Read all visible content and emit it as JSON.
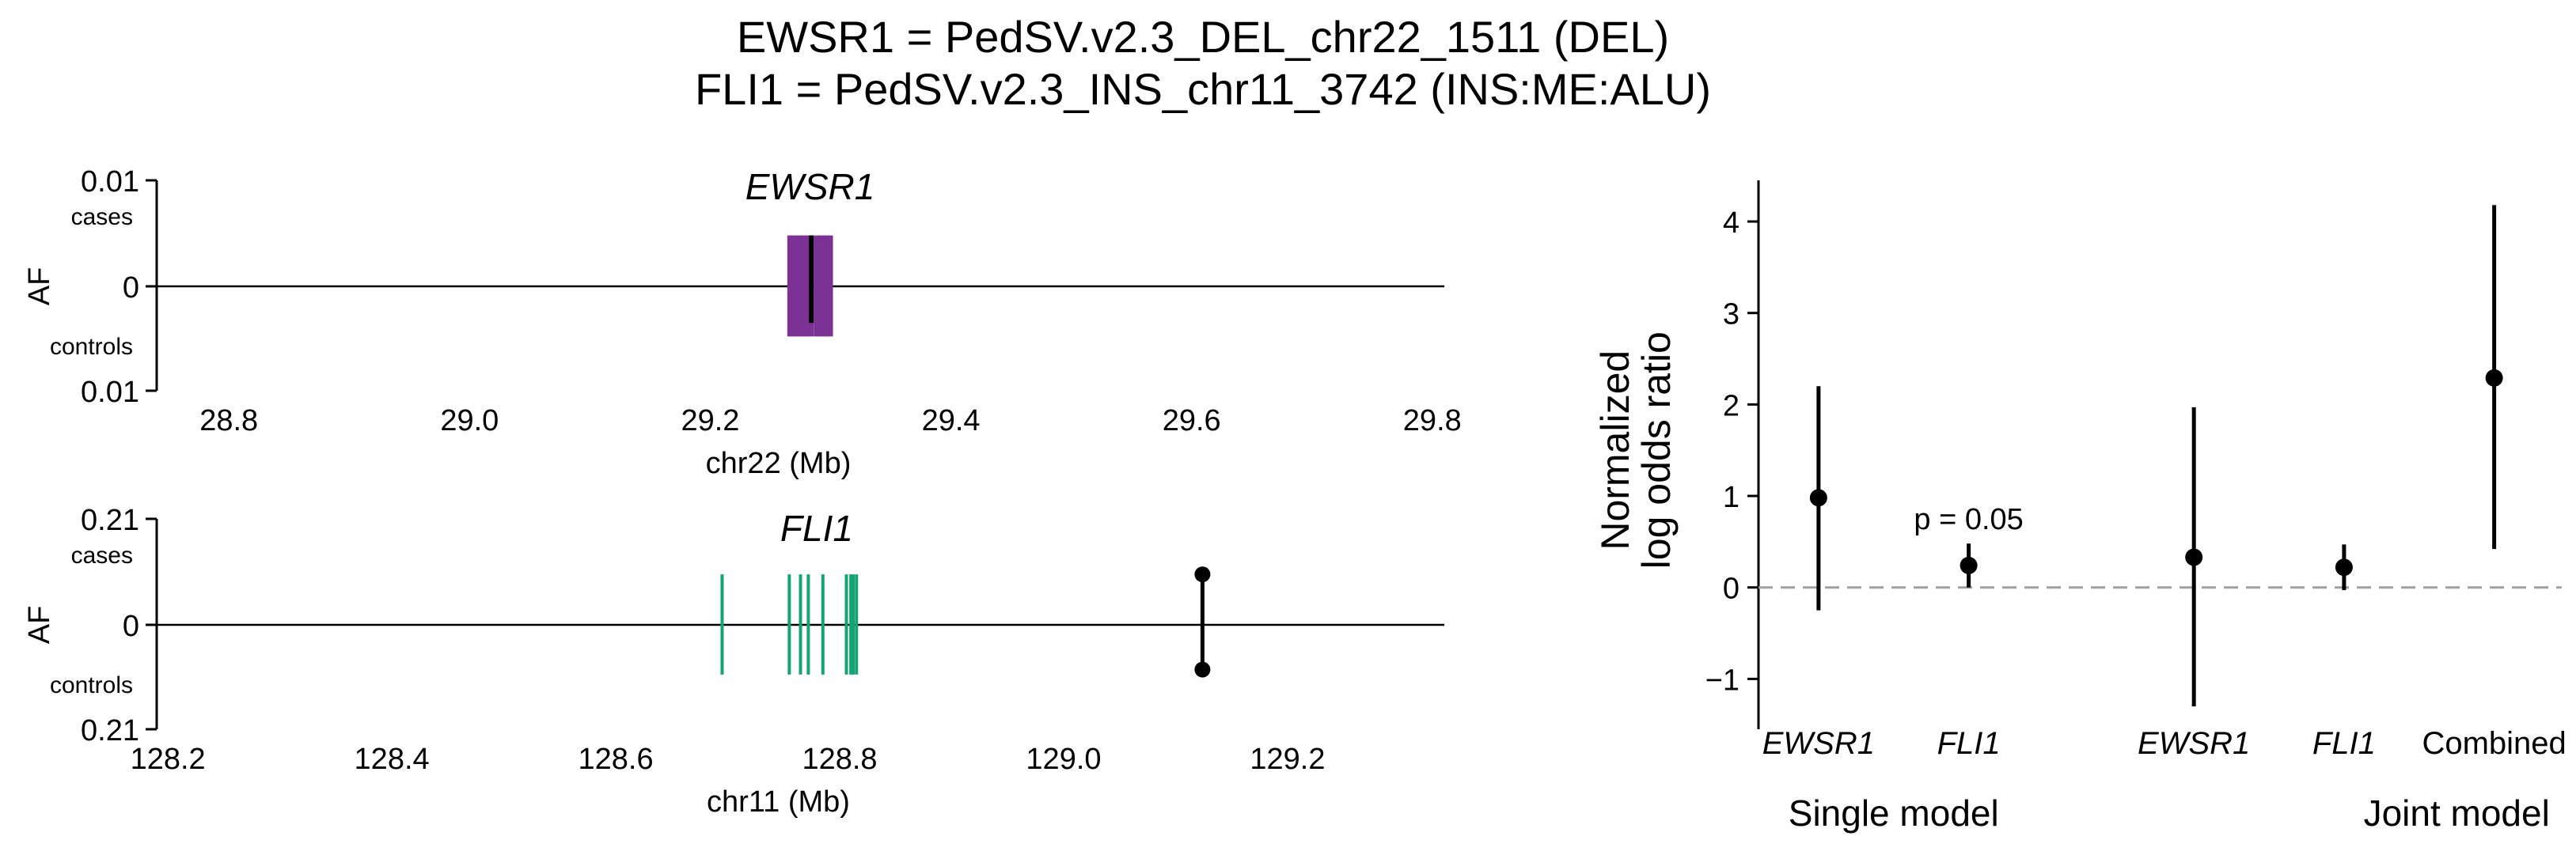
{
  "title": {
    "line1": "EWSR1 = PedSV.v2.3_DEL_chr22_1511 (DEL)",
    "line2": "FLI1 = PedSV.v2.3_INS_chr11_3742 (INS:ME:ALU)"
  },
  "colors": {
    "ewsr1_exon": "#7b3294",
    "fli1_exon": "#14a474",
    "variant": "#000000",
    "null_line": "#a0a0a0"
  },
  "chart_data": [
    {
      "type": "locus",
      "gene_label": "EWSR1",
      "ylabel": "AF",
      "y_top_tick": "0.01",
      "y_zero_tick": "0",
      "y_bottom_tick": "0.01",
      "cases_label": "cases",
      "controls_label": "controls",
      "ylim": [
        -0.01,
        0.01
      ],
      "xlabel": "chr22 (Mb)",
      "xlim": [
        28.74,
        29.81
      ],
      "xticks": [
        {
          "value": 28.8,
          "label": "28.8"
        },
        {
          "value": 29.0,
          "label": "29.0"
        },
        {
          "value": 29.2,
          "label": "29.2"
        },
        {
          "value": 29.4,
          "label": "29.4"
        },
        {
          "value": 29.6,
          "label": "29.6"
        },
        {
          "value": 29.8,
          "label": "29.8"
        }
      ],
      "exons": [
        29.266,
        29.269,
        29.272,
        29.275,
        29.278,
        29.281,
        29.284,
        29.288,
        29.291,
        29.294,
        29.297,
        29.3
      ],
      "exon_af": 0.0048,
      "variant": {
        "x": 29.284,
        "af_cases": 0.0048,
        "af_controls": -0.0035
      }
    },
    {
      "type": "locus",
      "gene_label": "FLI1",
      "ylabel": "AF",
      "y_top_tick": "0.21",
      "y_zero_tick": "0",
      "y_bottom_tick": "0.21",
      "cases_label": "cases",
      "controls_label": "controls",
      "ylim": [
        -0.21,
        0.21
      ],
      "xlabel": "chr11 (Mb)",
      "xlim": [
        128.19,
        129.34
      ],
      "xticks": [
        {
          "value": 128.2,
          "label": "128.2"
        },
        {
          "value": 128.4,
          "label": "128.4"
        },
        {
          "value": 128.6,
          "label": "128.6"
        },
        {
          "value": 128.8,
          "label": "128.8"
        },
        {
          "value": 129.0,
          "label": "129.0"
        },
        {
          "value": 129.2,
          "label": "129.2"
        }
      ],
      "exons": [
        128.695,
        128.755,
        128.765,
        128.772,
        128.785,
        128.806,
        128.81,
        128.812,
        128.815
      ],
      "exon_af": 0.1,
      "variant": {
        "x": 129.124,
        "af_cases": 0.1,
        "af_controls": -0.09
      }
    },
    {
      "type": "scatter",
      "ylabel_line1": "Normalized",
      "ylabel_line2": "log odds ratio",
      "ylim": [
        -1.55,
        4.45
      ],
      "yticks": [
        {
          "value": -1,
          "label": "−1"
        },
        {
          "value": 0,
          "label": "0"
        },
        {
          "value": 1,
          "label": "1"
        },
        {
          "value": 2,
          "label": "2"
        },
        {
          "value": 3,
          "label": "3"
        },
        {
          "value": 4,
          "label": "4"
        }
      ],
      "groups": [
        {
          "label": "Single model",
          "center": 1.5
        },
        {
          "label": "Joint model",
          "center": 5.25
        }
      ],
      "points": [
        {
          "label": "EWSR1",
          "italic": true,
          "x": 1,
          "y": 0.98,
          "lo": -0.25,
          "hi": 2.2,
          "annotation": ""
        },
        {
          "label": "FLI1",
          "italic": true,
          "x": 2,
          "y": 0.24,
          "lo": 0.0,
          "hi": 0.48,
          "annotation": "p = 0.05"
        },
        {
          "label": "EWSR1",
          "italic": true,
          "x": 3.5,
          "y": 0.33,
          "lo": -1.3,
          "hi": 1.97,
          "annotation": ""
        },
        {
          "label": "FLI1",
          "italic": true,
          "x": 4.5,
          "y": 0.22,
          "lo": -0.03,
          "hi": 0.47,
          "annotation": ""
        },
        {
          "label": "Combined",
          "italic": false,
          "x": 5.5,
          "y": 2.29,
          "lo": 0.42,
          "hi": 4.18,
          "annotation": ""
        }
      ],
      "xlim": [
        0.6,
        5.95
      ],
      "null_line": 0
    }
  ]
}
